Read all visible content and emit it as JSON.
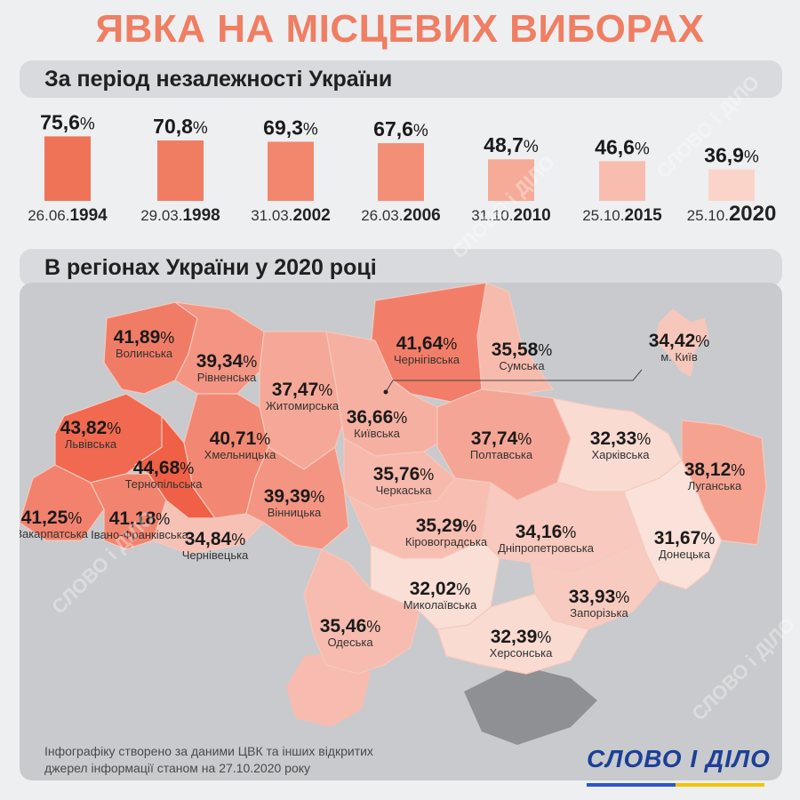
{
  "title": "ЯВКА НА МІСЦЕВИХ ВИБОРАХ",
  "section1": {
    "title": "За період незалежності України"
  },
  "section2": {
    "title": "В регіонах України у 2020 році"
  },
  "chart_data": [
    {
      "type": "bar",
      "title": "За період незалежності України",
      "categories": [
        "26.06.1994",
        "29.03.1998",
        "31.03.2002",
        "26.03.2006",
        "31.10.2010",
        "25.10.2015",
        "25.10.2020"
      ],
      "date_prefixes": [
        "26.06.",
        "29.03.",
        "31.03.",
        "26.03.",
        "31.10.",
        "25.10.",
        "25.10."
      ],
      "years": [
        "1994",
        "1998",
        "2002",
        "2006",
        "2010",
        "2015",
        "2020"
      ],
      "value_labels": [
        "75,6",
        "70,8",
        "69,3",
        "67,6",
        "48,7",
        "46,6",
        "36,9"
      ],
      "values": [
        75.6,
        70.8,
        69.3,
        67.6,
        48.7,
        46.6,
        36.9
      ],
      "unit": "%",
      "colors": [
        "#ef7356",
        "#f07d62",
        "#f2876d",
        "#f38f77",
        "#f6ab98",
        "#f8bdaf",
        "#fbd4c9"
      ]
    },
    {
      "type": "map",
      "title": "В регіонах України у 2020 році",
      "regions": [
        {
          "name": "Волинська",
          "value": 41.89,
          "label": "41,89"
        },
        {
          "name": "Рівненська",
          "value": 39.34,
          "label": "39,34"
        },
        {
          "name": "Житомирська",
          "value": 37.47,
          "label": "37,47"
        },
        {
          "name": "Чернігівська",
          "value": 41.64,
          "label": "41,64"
        },
        {
          "name": "Сумська",
          "value": 35.58,
          "label": "35,58"
        },
        {
          "name": "м. Київ",
          "value": 34.42,
          "label": "34,42"
        },
        {
          "name": "Львівська",
          "value": 43.82,
          "label": "43,82"
        },
        {
          "name": "Хмельницька",
          "value": 40.71,
          "label": "40,71"
        },
        {
          "name": "Київська",
          "value": 36.66,
          "label": "36,66"
        },
        {
          "name": "Полтавська",
          "value": 37.74,
          "label": "37,74"
        },
        {
          "name": "Харківська",
          "value": 32.33,
          "label": "32,33"
        },
        {
          "name": "Луганська",
          "value": 38.12,
          "label": "38,12"
        },
        {
          "name": "Тернопільська",
          "value": 44.68,
          "label": "44,68"
        },
        {
          "name": "Вінницька",
          "value": 39.39,
          "label": "39,39"
        },
        {
          "name": "Черкаська",
          "value": 35.76,
          "label": "35,76"
        },
        {
          "name": "Закарпатська",
          "value": 41.25,
          "label": "41,25"
        },
        {
          "name": "Івано-Франківська",
          "value": 41.18,
          "label": "41,18"
        },
        {
          "name": "Чернівецька",
          "value": 34.84,
          "label": "34,84"
        },
        {
          "name": "Кіровоградська",
          "value": 35.29,
          "label": "35,29"
        },
        {
          "name": "Дніпропетровська",
          "value": 34.16,
          "label": "34,16"
        },
        {
          "name": "Донецька",
          "value": 31.67,
          "label": "31,67"
        },
        {
          "name": "Миколаївська",
          "value": 32.02,
          "label": "32,02"
        },
        {
          "name": "Запорізька",
          "value": 33.93,
          "label": "33,93"
        },
        {
          "name": "Одеська",
          "value": 35.46,
          "label": "35,46"
        },
        {
          "name": "Херсонська",
          "value": 32.39,
          "label": "32,39"
        }
      ],
      "unit": "%",
      "occupied_color": "#8f9093"
    }
  ],
  "footer": {
    "source_line1": "Інфографіку створено за даними ЦВК та інших відкритих",
    "source_line2": "джерел інформації станом на 27.10.2020 року",
    "logo": "СЛОВО І ДІЛО",
    "logo_colors": [
      "#2a57c8",
      "#f5c400"
    ],
    "watermark": "СЛОВО і ДІЛО"
  }
}
